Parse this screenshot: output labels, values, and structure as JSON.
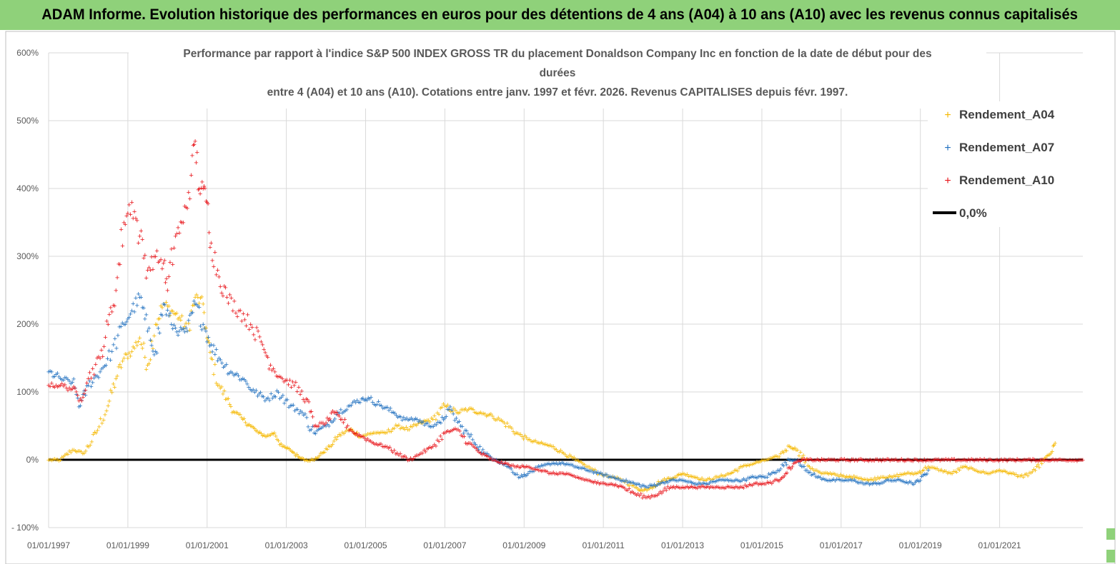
{
  "header": {
    "title": "ADAM Informe. Evolution historique des performances en euros pour des détentions de 4 ans (A04) à 10 ans (A10) avec les revenus connus capitalisés"
  },
  "colors": {
    "A04": "#f5b800",
    "A07": "#1f6fbf",
    "A10": "#e8141a",
    "zero": "#000000",
    "grid": "#d9d9d9",
    "banner": "#8fd17a"
  },
  "chart_data": {
    "type": "scatter",
    "title_lines": [
      "Performance par rapport à l'indice S&P 500 INDEX GROSS TR  du placement Donaldson Company Inc en fonction de la date de début pour des",
      "durées",
      "entre 4 (A04) et 10 ans (A10). Cotations entre janv. 1997 et févr. 2026. Revenus CAPITALISES depuis févr. 1997."
    ],
    "y_ticks": [
      "600%",
      "500%",
      "400%",
      "300%",
      "200%",
      "100%",
      "0%",
      "- 100%"
    ],
    "ylim": [
      -100,
      600
    ],
    "x_ticks": [
      "01/01/1997",
      "01/01/1999",
      "01/01/2001",
      "01/01/2003",
      "01/01/2005",
      "01/01/2007",
      "01/01/2009",
      "01/01/2011",
      "01/01/2013",
      "01/01/2015",
      "01/01/2017",
      "01/01/2019",
      "01/01/2021"
    ],
    "xlim": [
      1997.0,
      2023.1
    ],
    "legend": [
      "Rendement_A04",
      "Rendement_A07",
      "Rendement_A10",
      "0,0%"
    ],
    "series": [
      {
        "name": "Rendement_A04",
        "points": [
          [
            1997.0,
            0
          ],
          [
            1997.3,
            0
          ],
          [
            1997.6,
            15
          ],
          [
            1997.9,
            10
          ],
          [
            1998.2,
            40
          ],
          [
            1998.5,
            80
          ],
          [
            1998.7,
            120
          ],
          [
            1998.9,
            150
          ],
          [
            1999.1,
            160
          ],
          [
            1999.3,
            180
          ],
          [
            1999.5,
            140
          ],
          [
            1999.7,
            200
          ],
          [
            1999.9,
            230
          ],
          [
            2000.1,
            220
          ],
          [
            2000.3,
            210
          ],
          [
            2000.5,
            190
          ],
          [
            2000.7,
            240
          ],
          [
            2000.9,
            230
          ],
          [
            2001.0,
            180
          ],
          [
            2001.1,
            150
          ],
          [
            2001.3,
            110
          ],
          [
            2001.5,
            90
          ],
          [
            2001.7,
            70
          ],
          [
            2001.9,
            60
          ],
          [
            2002.1,
            50
          ],
          [
            2002.3,
            40
          ],
          [
            2002.5,
            35
          ],
          [
            2002.7,
            40
          ],
          [
            2002.9,
            20
          ],
          [
            2003.1,
            15
          ],
          [
            2003.3,
            5
          ],
          [
            2003.5,
            0
          ],
          [
            2003.7,
            0
          ],
          [
            2003.9,
            10
          ],
          [
            2004.1,
            20
          ],
          [
            2004.3,
            35
          ],
          [
            2004.6,
            45
          ],
          [
            2004.9,
            35
          ],
          [
            2005.2,
            40
          ],
          [
            2005.5,
            40
          ],
          [
            2005.8,
            50
          ],
          [
            2006.1,
            45
          ],
          [
            2006.4,
            55
          ],
          [
            2006.7,
            60
          ],
          [
            2007.0,
            80
          ],
          [
            2007.3,
            70
          ],
          [
            2007.6,
            75
          ],
          [
            2007.9,
            70
          ],
          [
            2008.2,
            65
          ],
          [
            2008.5,
            55
          ],
          [
            2008.8,
            40
          ],
          [
            2009.1,
            30
          ],
          [
            2009.4,
            25
          ],
          [
            2009.7,
            20
          ],
          [
            2010.0,
            10
          ],
          [
            2010.3,
            0
          ],
          [
            2010.6,
            -10
          ],
          [
            2010.9,
            -20
          ],
          [
            2011.2,
            -25
          ],
          [
            2011.5,
            -30
          ],
          [
            2011.8,
            -40
          ],
          [
            2012.0,
            -45
          ],
          [
            2012.2,
            -40
          ],
          [
            2012.5,
            -30
          ],
          [
            2012.8,
            -25
          ],
          [
            2013.0,
            -20
          ],
          [
            2013.3,
            -25
          ],
          [
            2013.6,
            -30
          ],
          [
            2013.9,
            -25
          ],
          [
            2014.2,
            -20
          ],
          [
            2014.5,
            -10
          ],
          [
            2014.8,
            -5
          ],
          [
            2015.1,
            0
          ],
          [
            2015.4,
            5
          ],
          [
            2015.7,
            20
          ],
          [
            2015.9,
            15
          ],
          [
            2016.2,
            -10
          ],
          [
            2016.5,
            -20
          ],
          [
            2016.8,
            -20
          ],
          [
            2017.1,
            -25
          ],
          [
            2017.4,
            -25
          ],
          [
            2017.7,
            -30
          ],
          [
            2018.0,
            -25
          ],
          [
            2018.3,
            -25
          ],
          [
            2018.6,
            -20
          ],
          [
            2018.9,
            -20
          ],
          [
            2019.2,
            -10
          ],
          [
            2019.5,
            -15
          ],
          [
            2019.8,
            -20
          ],
          [
            2020.1,
            -10
          ],
          [
            2020.4,
            -15
          ],
          [
            2020.7,
            -20
          ],
          [
            2021.0,
            -15
          ],
          [
            2021.3,
            -20
          ],
          [
            2021.6,
            -25
          ],
          [
            2021.9,
            -15
          ],
          [
            2022.1,
            0
          ],
          [
            2022.3,
            10
          ],
          [
            2022.4,
            25
          ]
        ]
      },
      {
        "name": "Rendement_A07",
        "points": [
          [
            1997.0,
            130
          ],
          [
            1997.3,
            120
          ],
          [
            1997.6,
            115
          ],
          [
            1997.8,
            80
          ],
          [
            1998.0,
            110
          ],
          [
            1998.3,
            130
          ],
          [
            1998.6,
            160
          ],
          [
            1998.9,
            200
          ],
          [
            1999.1,
            220
          ],
          [
            1999.3,
            240
          ],
          [
            1999.5,
            190
          ],
          [
            1999.7,
            160
          ],
          [
            1999.9,
            230
          ],
          [
            2000.1,
            200
          ],
          [
            2000.3,
            190
          ],
          [
            2000.5,
            190
          ],
          [
            2000.7,
            230
          ],
          [
            2000.9,
            200
          ],
          [
            2001.1,
            170
          ],
          [
            2001.3,
            150
          ],
          [
            2001.6,
            130
          ],
          [
            2001.9,
            120
          ],
          [
            2002.2,
            100
          ],
          [
            2002.5,
            90
          ],
          [
            2002.8,
            100
          ],
          [
            2003.1,
            80
          ],
          [
            2003.4,
            70
          ],
          [
            2003.7,
            40
          ],
          [
            2004.0,
            50
          ],
          [
            2004.3,
            70
          ],
          [
            2004.6,
            80
          ],
          [
            2004.9,
            90
          ],
          [
            2005.1,
            90
          ],
          [
            2005.4,
            80
          ],
          [
            2005.7,
            70
          ],
          [
            2006.0,
            60
          ],
          [
            2006.3,
            60
          ],
          [
            2006.6,
            50
          ],
          [
            2006.9,
            55
          ],
          [
            2007.1,
            75
          ],
          [
            2007.4,
            50
          ],
          [
            2007.7,
            30
          ],
          [
            2008.0,
            10
          ],
          [
            2008.3,
            0
          ],
          [
            2008.6,
            -10
          ],
          [
            2008.9,
            -25
          ],
          [
            2009.1,
            -20
          ],
          [
            2009.4,
            -10
          ],
          [
            2009.7,
            -5
          ],
          [
            2010.0,
            -5
          ],
          [
            2010.3,
            -10
          ],
          [
            2010.6,
            -15
          ],
          [
            2010.9,
            -20
          ],
          [
            2011.2,
            -25
          ],
          [
            2011.5,
            -30
          ],
          [
            2011.8,
            -35
          ],
          [
            2012.1,
            -40
          ],
          [
            2012.4,
            -35
          ],
          [
            2012.7,
            -30
          ],
          [
            2013.0,
            -30
          ],
          [
            2013.3,
            -35
          ],
          [
            2013.6,
            -35
          ],
          [
            2013.9,
            -30
          ],
          [
            2014.2,
            -30
          ],
          [
            2014.5,
            -30
          ],
          [
            2014.8,
            -25
          ],
          [
            2015.1,
            -25
          ],
          [
            2015.4,
            -15
          ],
          [
            2015.7,
            0
          ],
          [
            2015.9,
            0
          ],
          [
            2016.1,
            -15
          ],
          [
            2016.4,
            -25
          ],
          [
            2016.7,
            -30
          ],
          [
            2017.0,
            -30
          ],
          [
            2017.3,
            -30
          ],
          [
            2017.6,
            -35
          ],
          [
            2017.9,
            -35
          ],
          [
            2018.2,
            -30
          ],
          [
            2018.5,
            -30
          ],
          [
            2018.8,
            -35
          ],
          [
            2019.0,
            -30
          ],
          [
            2019.2,
            -15
          ]
        ]
      },
      {
        "name": "Rendement_A10",
        "points": [
          [
            1997.0,
            110
          ],
          [
            1997.3,
            110
          ],
          [
            1997.6,
            105
          ],
          [
            1997.8,
            90
          ],
          [
            1998.0,
            120
          ],
          [
            1998.3,
            150
          ],
          [
            1998.5,
            200
          ],
          [
            1998.7,
            250
          ],
          [
            1998.9,
            350
          ],
          [
            1999.1,
            380
          ],
          [
            1999.3,
            330
          ],
          [
            1999.5,
            280
          ],
          [
            1999.7,
            300
          ],
          [
            1999.9,
            290
          ],
          [
            2000.0,
            250
          ],
          [
            2000.2,
            330
          ],
          [
            2000.4,
            350
          ],
          [
            2000.6,
            420
          ],
          [
            2000.7,
            470
          ],
          [
            2000.8,
            400
          ],
          [
            2000.9,
            400
          ],
          [
            2001.0,
            380
          ],
          [
            2001.1,
            320
          ],
          [
            2001.3,
            270
          ],
          [
            2001.5,
            240
          ],
          [
            2001.8,
            220
          ],
          [
            2002.1,
            200
          ],
          [
            2002.4,
            170
          ],
          [
            2002.6,
            140
          ],
          [
            2002.9,
            120
          ],
          [
            2003.2,
            110
          ],
          [
            2003.5,
            90
          ],
          [
            2003.7,
            50
          ],
          [
            2004.0,
            55
          ],
          [
            2004.2,
            70
          ],
          [
            2004.4,
            60
          ],
          [
            2004.7,
            40
          ],
          [
            2004.9,
            35
          ],
          [
            2005.2,
            25
          ],
          [
            2005.5,
            20
          ],
          [
            2005.8,
            10
          ],
          [
            2006.1,
            0
          ],
          [
            2006.4,
            10
          ],
          [
            2006.7,
            20
          ],
          [
            2007.0,
            40
          ],
          [
            2007.3,
            45
          ],
          [
            2007.6,
            25
          ],
          [
            2007.9,
            10
          ],
          [
            2008.2,
            0
          ],
          [
            2008.5,
            -5
          ],
          [
            2008.8,
            -10
          ],
          [
            2009.1,
            -10
          ],
          [
            2009.4,
            -15
          ],
          [
            2009.7,
            -20
          ],
          [
            2010.0,
            -20
          ],
          [
            2010.3,
            -25
          ],
          [
            2010.6,
            -30
          ],
          [
            2010.9,
            -35
          ],
          [
            2011.2,
            -35
          ],
          [
            2011.5,
            -40
          ],
          [
            2011.8,
            -50
          ],
          [
            2012.1,
            -55
          ],
          [
            2012.4,
            -50
          ],
          [
            2012.7,
            -40
          ],
          [
            2013.0,
            -40
          ],
          [
            2013.3,
            -40
          ],
          [
            2013.6,
            -40
          ],
          [
            2013.9,
            -40
          ],
          [
            2014.2,
            -40
          ],
          [
            2014.5,
            -40
          ],
          [
            2014.8,
            -35
          ],
          [
            2015.1,
            -35
          ],
          [
            2015.4,
            -30
          ],
          [
            2015.6,
            -20
          ],
          [
            2015.8,
            -5
          ],
          [
            2016.0,
            0
          ],
          [
            2023.1,
            0
          ]
        ]
      }
    ]
  }
}
